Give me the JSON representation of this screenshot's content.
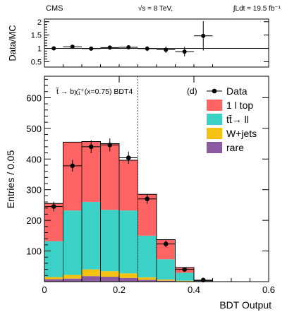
{
  "header": {
    "experiment": "CMS",
    "energy": "√s = 8 TeV,",
    "lumi": "∫Ldt = 19.5 fb⁻¹"
  },
  "chart_data": [
    {
      "type": "scatter",
      "panel": "ratio",
      "ylabel": "Data/MC",
      "xlim": [
        0,
        0.6
      ],
      "ylim": [
        0.3,
        2.1
      ],
      "yticks": [
        "0.5",
        "1",
        "1.5",
        "2"
      ],
      "reference_line": 1.0,
      "x": [
        0.025,
        0.075,
        0.125,
        0.175,
        0.225,
        0.275,
        0.325,
        0.375,
        0.425
      ],
      "values": [
        1.0,
        1.06,
        0.99,
        1.03,
        1.04,
        0.99,
        0.95,
        0.88,
        1.47
      ],
      "errors": [
        0.06,
        0.06,
        0.05,
        0.05,
        0.06,
        0.09,
        0.12,
        0.18,
        0.55
      ]
    },
    {
      "type": "bar",
      "stacked": true,
      "panel": "main",
      "ylabel": "Entries / 0.05",
      "xlabel": "BDT Output",
      "xlim": [
        0,
        0.6
      ],
      "ylim": [
        0,
        670
      ],
      "xticks": [
        "0",
        "0.2",
        "0.4",
        "0.6"
      ],
      "yticks": [
        "100",
        "200",
        "300",
        "400",
        "500",
        "600"
      ],
      "bin_edges": [
        0,
        0.05,
        0.1,
        0.15,
        0.2,
        0.25,
        0.3,
        0.35,
        0.4,
        0.45
      ],
      "annotation": "t̃ → bχ̃₁⁺(x=0.75) BDT4",
      "panel_tag": "(d)",
      "cut_value": 0.25,
      "legend_position": "top-right",
      "series": [
        {
          "name": "rare",
          "color": "#8c5aa0",
          "values": [
            8,
            10,
            18,
            16,
            12,
            6,
            3,
            1,
            0
          ]
        },
        {
          "name": "W+jets",
          "color": "#f5c211",
          "values": [
            7,
            12,
            22,
            18,
            15,
            8,
            4,
            2,
            0
          ]
        },
        {
          "name": "tt̄→ ll",
          "color": "#3cd1c6",
          "values": [
            117,
            210,
            220,
            200,
            205,
            136,
            66,
            26,
            2
          ]
        },
        {
          "name": "1 l top",
          "color": "#ff6464",
          "values": [
            123,
            223,
            197,
            216,
            164,
            135,
            64,
            17,
            1
          ]
        }
      ],
      "data": {
        "name": "Data",
        "x": [
          0.025,
          0.075,
          0.125,
          0.175,
          0.225,
          0.275,
          0.325,
          0.375,
          0.425
        ],
        "values": [
          245,
          378,
          440,
          446,
          404,
          270,
          123,
          40,
          5
        ],
        "errors": [
          16,
          19,
          21,
          21,
          20,
          16,
          11,
          6,
          2
        ]
      }
    }
  ]
}
